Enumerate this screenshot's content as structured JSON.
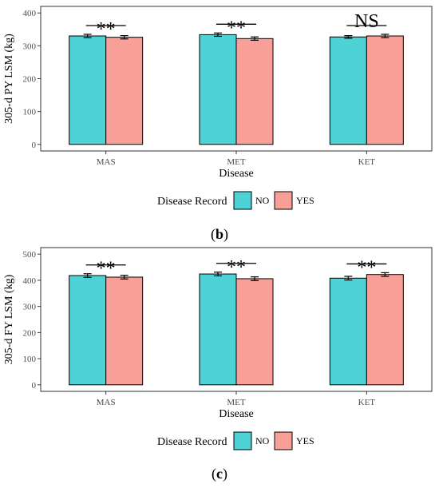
{
  "chart_data": [
    {
      "type": "bar",
      "panel_label": "(b)",
      "categories": [
        "MAS",
        "MET",
        "KET"
      ],
      "xlabel": "Disease",
      "ylabel": "305-d PY LSM (kg)",
      "ylim": [
        0,
        400
      ],
      "yticks": [
        0,
        100,
        200,
        300,
        400
      ],
      "grid": false,
      "legend": {
        "title": "Disease Record",
        "placement": "bottom"
      },
      "series": [
        {
          "name": "NO",
          "color": "#4dd3d6",
          "values": [
            330,
            334,
            327
          ],
          "errors": [
            5,
            5,
            4
          ]
        },
        {
          "name": "YES",
          "color": "#f8a097",
          "values": [
            326,
            322,
            330
          ],
          "errors": [
            5,
            5,
            5
          ]
        }
      ],
      "annotations": [
        "**",
        "**",
        "NS"
      ]
    },
    {
      "type": "bar",
      "panel_label": "(c)",
      "categories": [
        "MAS",
        "MET",
        "KET"
      ],
      "xlabel": "Disease",
      "ylabel": "305-d FY LSM (kg)",
      "ylim": [
        0,
        500
      ],
      "yticks": [
        0,
        100,
        200,
        300,
        400,
        500
      ],
      "grid": false,
      "legend": {
        "title": "Disease Record",
        "placement": "bottom"
      },
      "series": [
        {
          "name": "NO",
          "color": "#4dd3d6",
          "values": [
            418,
            424,
            408
          ],
          "errors": [
            7,
            7,
            7
          ]
        },
        {
          "name": "YES",
          "color": "#f8a097",
          "values": [
            412,
            406,
            422
          ],
          "errors": [
            7,
            7,
            7
          ]
        }
      ],
      "annotations": [
        "**",
        "**",
        "**"
      ]
    }
  ]
}
